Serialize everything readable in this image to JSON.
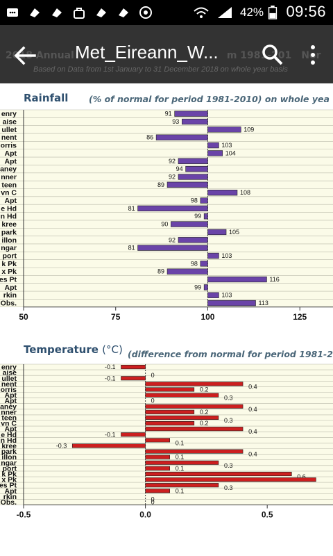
{
  "status_bar": {
    "time": "09:56",
    "battery": "42%",
    "icons": [
      "message-icon",
      "notification-icon",
      "notification-icon",
      "bag-icon",
      "notification-icon",
      "notification-icon",
      "target-icon",
      "wifi-icon",
      "signal-icon",
      "battery-icon"
    ]
  },
  "app_bar": {
    "title": "Met_Eireann_W...",
    "back_icon": "arrow-left-icon",
    "search_icon": "search-icon",
    "more_icon": "more-vert-icon",
    "background_text": "2018 Annual",
    "background_text_right": "m 1981-201",
    "background_text_far": "Nor",
    "background_sub": "Based on Data from 1st January to 31 December 2018 on whole year basis"
  },
  "colors": {
    "rain_bar": "#6a44a8",
    "temp_bar": "#cc1f1f",
    "plot_bg": "#fbfbe8",
    "title": "#2e4f6e"
  },
  "chart_data": [
    {
      "type": "bar",
      "orientation": "horizontal",
      "title": "Rainfall",
      "subtitle": "(% of normal for period 1981-2010) on whole yea",
      "categories": [
        "enry",
        "aise",
        "ullet",
        "nent",
        "orris",
        "Apt",
        "Apt",
        "aney",
        "nner",
        "teen",
        "vn C",
        "Apt",
        "e Hd",
        "n Hd",
        "kree",
        "park",
        "illon",
        "ngar",
        "port",
        "k Pk",
        "x Pk",
        "es Pt",
        "Apt",
        "rkin",
        "Obs."
      ],
      "values": [
        91,
        93,
        109,
        86,
        103,
        104,
        92,
        94,
        92,
        89,
        108,
        98,
        81,
        99,
        90,
        105,
        92,
        81,
        103,
        98,
        89,
        116,
        99,
        103,
        113
      ],
      "reference": 100,
      "xlim": [
        50,
        134
      ],
      "xticks": [
        50,
        75,
        100,
        125
      ]
    },
    {
      "type": "bar",
      "orientation": "horizontal",
      "title": "Temperature",
      "title_unit": "(°C)",
      "subtitle": "(difference from normal for period 1981-2",
      "categories": [
        "enry",
        "aise",
        "ullet",
        "nent",
        "orris",
        "Apt",
        "Apt",
        "aney",
        "nner",
        "teen",
        "vn C",
        "Apt",
        "e Hd",
        "n Hd",
        "kree",
        "park",
        "illon",
        "ngar",
        "port",
        "k Pk",
        "x Pk",
        "es Pt",
        "Apt",
        "rkin",
        "Obs."
      ],
      "values": [
        -0.1,
        0,
        -0.1,
        0.4,
        0.2,
        0.3,
        0,
        0.4,
        0.2,
        0.3,
        0.2,
        0.4,
        -0.1,
        0.1,
        -0.3,
        0.4,
        0.1,
        0.3,
        0.1,
        0.6,
        0.7,
        0.3,
        0.1,
        0,
        0
      ],
      "labels": [
        "-0.1",
        "0",
        "-0.1",
        "0.4",
        "0.2",
        "0.3",
        "0",
        "0.4",
        "0.2",
        "0.3",
        "0.2",
        "0.4",
        "-0.1",
        "0.1",
        "-0.3",
        "0.4",
        "0.1",
        "0.3",
        "0.1",
        "0.6",
        "",
        "0.3",
        "0.1",
        "0",
        "0"
      ],
      "xlim": [
        -0.5,
        0.77
      ],
      "xticks": [
        -0.5,
        0.0,
        0.5
      ],
      "xtick_labels": [
        "-0.5",
        "0.0",
        "0.5"
      ]
    }
  ]
}
